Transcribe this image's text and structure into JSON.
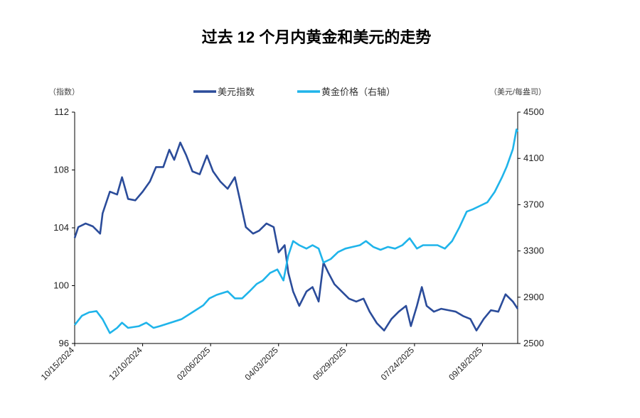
{
  "chart_data": {
    "type": "line",
    "title": "过去 12 个月内黄金和美元的走势",
    "left_unit": "（指数）",
    "right_unit": "（美元/每盎司）",
    "legend_position": "top",
    "x_unit": "days since 10/15/2024",
    "x_ticks": [
      {
        "day": 0,
        "label": "10/15/2024"
      },
      {
        "day": 56,
        "label": "12/10/2024"
      },
      {
        "day": 112,
        "label": "02/06/2025"
      },
      {
        "day": 168,
        "label": "04/03/2025"
      },
      {
        "day": 224,
        "label": "05/29/2025"
      },
      {
        "day": 280,
        "label": "07/24/2025"
      },
      {
        "day": 336,
        "label": "09/18/2025"
      }
    ],
    "xlim": [
      0,
      365
    ],
    "y_left": {
      "ylim": [
        96,
        112
      ],
      "ticks": [
        96,
        100,
        104,
        108,
        112
      ]
    },
    "y_right": {
      "ylim": [
        2500,
        4500
      ],
      "ticks": [
        2500,
        2900,
        3300,
        3700,
        4100,
        4500
      ]
    },
    "series": [
      {
        "name": "美元指数",
        "axis": "left",
        "color": "#2b4c9a",
        "x": [
          0,
          3,
          9,
          15,
          21,
          23,
          29,
          35,
          39,
          44,
          50,
          56,
          62,
          67,
          73,
          78,
          82,
          87,
          92,
          97,
          103,
          109,
          114,
          120,
          126,
          132,
          136,
          141,
          147,
          152,
          158,
          164,
          168,
          173,
          176,
          180,
          185,
          191,
          196,
          201,
          205,
          209,
          214,
          220,
          226,
          232,
          238,
          243,
          249,
          255,
          261,
          267,
          273,
          277,
          282,
          286,
          290,
          296,
          302,
          308,
          314,
          320,
          326,
          331,
          337,
          343,
          349,
          355,
          361,
          365
        ],
        "values": [
          103.3,
          104.05,
          104.3,
          104.1,
          103.6,
          105,
          106.5,
          106.3,
          107.5,
          106,
          105.9,
          106.5,
          107.2,
          108.2,
          108.2,
          109.4,
          108.7,
          109.9,
          109,
          107.9,
          107.7,
          109,
          107.9,
          107.2,
          106.7,
          107.5,
          106,
          104.05,
          103.6,
          103.8,
          104.3,
          104.05,
          102.3,
          102.8,
          100.9,
          99.6,
          98.6,
          99.6,
          99.9,
          98.9,
          101.6,
          100.9,
          100.1,
          99.6,
          99.1,
          98.9,
          99.1,
          98.2,
          97.4,
          96.9,
          97.7,
          98.2,
          98.6,
          97.2,
          98.6,
          99.9,
          98.6,
          98.2,
          98.4,
          98.3,
          98.2,
          97.9,
          97.7,
          96.9,
          97.7,
          98.3,
          98.2,
          99.4,
          98.9,
          98.4
        ]
      },
      {
        "name": "黄金价格（右轴）",
        "axis": "right",
        "color": "#1fb4ea",
        "x": [
          0,
          6,
          12,
          18,
          23,
          29,
          35,
          39,
          44,
          53,
          59,
          65,
          70,
          79,
          88,
          97,
          106,
          111,
          117,
          126,
          132,
          138,
          144,
          150,
          155,
          161,
          167,
          172,
          176,
          180,
          185,
          191,
          196,
          201,
          205,
          211,
          217,
          223,
          229,
          235,
          240,
          246,
          252,
          258,
          264,
          270,
          276,
          282,
          287,
          293,
          299,
          305,
          311,
          317,
          323,
          328,
          334,
          340,
          346,
          352,
          356,
          361,
          364,
          365
        ],
        "values": [
          2660,
          2740,
          2770,
          2780,
          2710,
          2590,
          2635,
          2680,
          2635,
          2650,
          2680,
          2635,
          2650,
          2680,
          2710,
          2770,
          2830,
          2890,
          2920,
          2950,
          2890,
          2890,
          2950,
          3015,
          3045,
          3110,
          3140,
          3045,
          3260,
          3385,
          3350,
          3320,
          3350,
          3320,
          3200,
          3230,
          3290,
          3320,
          3335,
          3350,
          3385,
          3335,
          3310,
          3335,
          3320,
          3350,
          3410,
          3320,
          3350,
          3350,
          3350,
          3320,
          3385,
          3505,
          3640,
          3660,
          3690,
          3720,
          3810,
          3935,
          4030,
          4180,
          4350,
          4330
        ]
      }
    ]
  }
}
